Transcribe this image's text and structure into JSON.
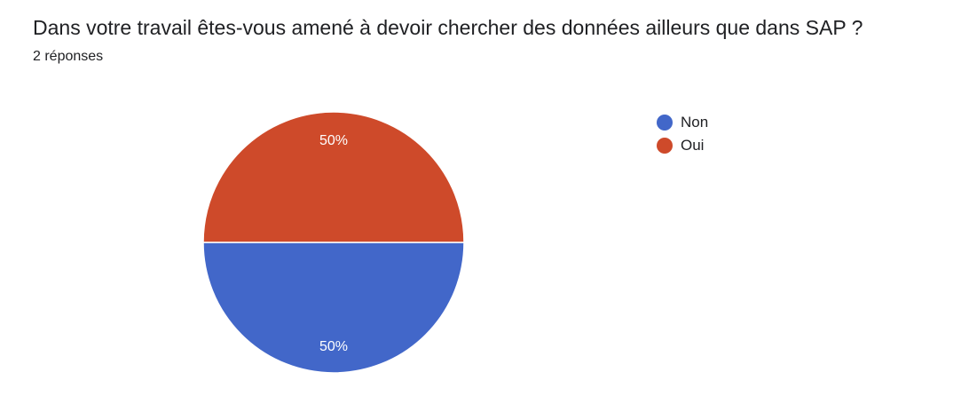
{
  "question": {
    "title": "Dans votre travail êtes-vous amené à devoir chercher des données ailleurs que dans SAP ?",
    "response_count": "2 réponses"
  },
  "chart_data": {
    "type": "pie",
    "categories": [
      "Non",
      "Oui"
    ],
    "values": [
      1,
      1
    ],
    "labels": [
      "50%",
      "50%"
    ],
    "colors": [
      "#4267c9",
      "#ce4a2a"
    ],
    "legend_position": "right"
  }
}
